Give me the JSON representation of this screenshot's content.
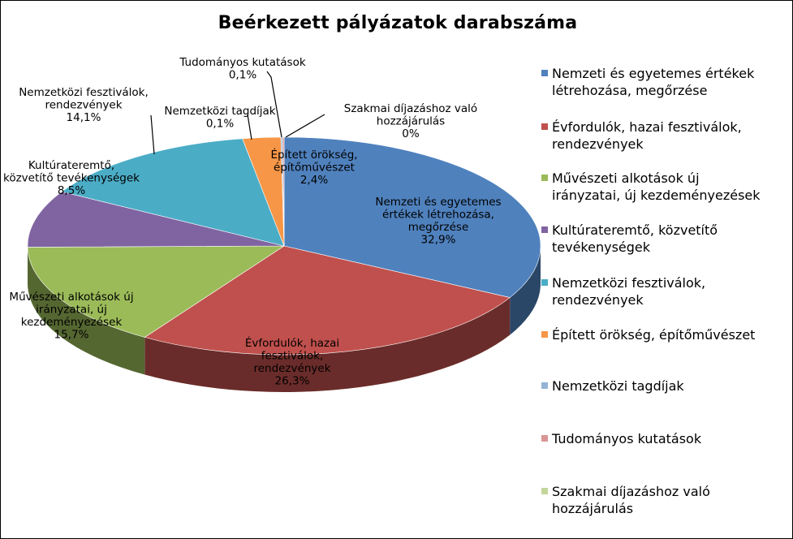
{
  "chart_data": {
    "type": "pie",
    "title": "Beérkezett pályázatok darabszáma",
    "legend_position": "right",
    "slices": [
      {
        "name": "Nemzeti és egyetemes értékek létrehozása, megőrzése",
        "value": 32.9,
        "label_lines": [
          "Nemzeti és egyetemes",
          "értékek létrehozása,",
          "megőrzése",
          "32,9%"
        ],
        "color": "#4F81BD"
      },
      {
        "name": "Évfordulók, hazai fesztiválok, rendezvények",
        "value": 26.3,
        "label_lines": [
          "Évfordulók, hazai",
          "fesztiválok,",
          "rendezvények",
          "26,3%"
        ],
        "color": "#C0504D"
      },
      {
        "name": "Művészeti alkotások új irányzatai, új kezdeményezések",
        "value": 15.7,
        "label_lines": [
          "Művészeti alkotások új",
          "irányzatai, új",
          "kezdeményezések",
          "15,7%"
        ],
        "color": "#9BBB59"
      },
      {
        "name": "Kultúrateremtő, közvetítő tevékenységek",
        "value": 8.5,
        "label_lines": [
          "Kultúrateremtő,",
          "közvetítő tevékenységek",
          "8,5%"
        ],
        "color": "#8064A2"
      },
      {
        "name": "Nemzetközi fesztiválok, rendezvények",
        "value": 14.1,
        "label_lines": [
          "Nemzetközi fesztiválok,",
          "rendezvények",
          "14,1%"
        ],
        "color": "#4BACC6"
      },
      {
        "name": "Épített örökség, építőművészet",
        "value": 2.4,
        "label_lines": [
          "Épített örökség,",
          "építőművészet",
          "2,4%"
        ],
        "color": "#F79646"
      },
      {
        "name": "Nemzetközi tagdíjak",
        "value": 0.1,
        "label_lines": [
          "Nemzetközi tagdíjak",
          "0,1%"
        ],
        "color": "#95B3D7"
      },
      {
        "name": "Tudományos kutatások",
        "value": 0.1,
        "label_lines": [
          "Tudományos kutatások",
          "0,1%"
        ],
        "color": "#D99694"
      },
      {
        "name": "Szakmai díjazáshoz való hozzájárulás",
        "value": 0,
        "label_lines": [
          "Szakmai díjazáshoz való",
          "hozzájárulás",
          "0%"
        ],
        "color": "#C3D69B"
      }
    ],
    "legend_lines": [
      [
        "Nemzeti és egyetemes értékek",
        "létrehozása, megőrzése"
      ],
      [
        "Évfordulók, hazai fesztiválok,",
        "rendezvények"
      ],
      [
        "Művészeti alkotások új",
        "irányzatai, új kezdeményezések"
      ],
      [
        "Kultúrateremtő, közvetítő",
        "tevékenységek"
      ],
      [
        "Nemzetközi fesztiválok,",
        "rendezvények"
      ],
      [
        "Épített örökség, építőművészet"
      ],
      [
        "Nemzetközi tagdíjak"
      ],
      [
        "Tudományos kutatások"
      ],
      [
        "Szakmai díjazáshoz való",
        "hozzájárulás"
      ]
    ]
  }
}
